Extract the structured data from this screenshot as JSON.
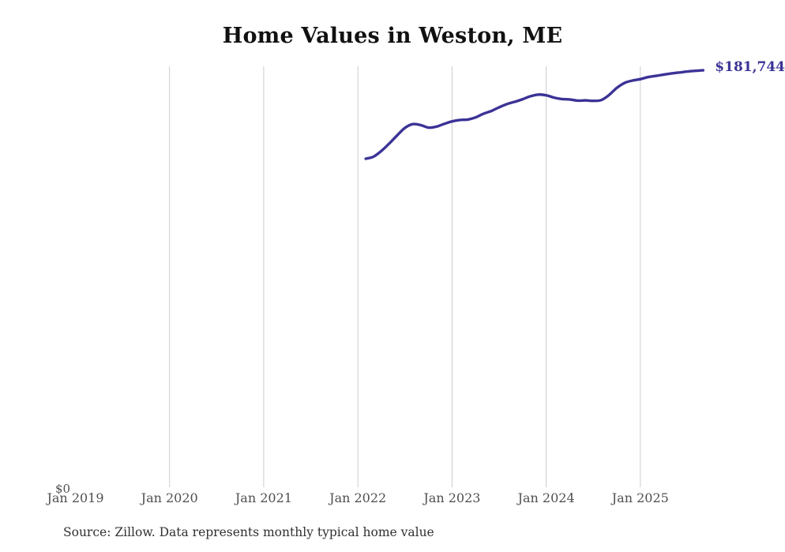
{
  "title": "Home Values in Weston, ME",
  "latest_value_label": "$181,744",
  "source_note": "Source: Zillow. Data represents monthly typical home value",
  "y_axis": {
    "zero_label": "$0"
  },
  "x_axis": {
    "tick_labels": [
      "Jan 2019",
      "Jan 2020",
      "Jan 2021",
      "Jan 2022",
      "Jan 2023",
      "Jan 2024",
      "Jan 2025"
    ],
    "gridlines": [
      "Jan 2020",
      "Jan 2021",
      "Jan 2022",
      "Jan 2023",
      "Jan 2024",
      "Jan 2025"
    ]
  },
  "colors": {
    "line": "#3b3396",
    "value_label": "#3b3396",
    "grid": "#cccccc",
    "axis_label": "#4f4f4f",
    "title": "#111111",
    "source": "#303030",
    "background": "#ffffff"
  },
  "chart_data": {
    "type": "line",
    "title": "Home Values in Weston, ME",
    "series_name": "Monthly typical home value (USD)",
    "x": [
      "2022-02",
      "2022-03",
      "2022-04",
      "2022-05",
      "2022-06",
      "2022-07",
      "2022-08",
      "2022-09",
      "2022-10",
      "2022-11",
      "2022-12",
      "2023-01",
      "2023-02",
      "2023-03",
      "2023-04",
      "2023-05",
      "2023-06",
      "2023-07",
      "2023-08",
      "2023-09",
      "2023-10",
      "2023-11",
      "2023-12",
      "2024-01",
      "2024-02",
      "2024-03",
      "2024-04",
      "2024-05",
      "2024-06",
      "2024-07",
      "2024-08",
      "2024-09",
      "2024-10",
      "2024-11",
      "2024-12",
      "2025-01",
      "2025-02",
      "2025-03",
      "2025-04",
      "2025-05",
      "2025-06",
      "2025-07",
      "2025-08",
      "2025-09"
    ],
    "values": [
      143400,
      144300,
      146800,
      150000,
      153500,
      156800,
      158400,
      158000,
      156900,
      157300,
      158500,
      159600,
      160200,
      160400,
      161300,
      162900,
      164100,
      165700,
      167100,
      168100,
      169200,
      170500,
      171200,
      170900,
      169900,
      169300,
      169100,
      168600,
      168700,
      168500,
      168800,
      171000,
      174100,
      176300,
      177300,
      177900,
      178800,
      179300,
      179900,
      180400,
      180800,
      181200,
      181500,
      181744
    ],
    "last_value": 181744,
    "end_annotation": "$181,744",
    "xlabel": "",
    "ylabel": "",
    "xlim": [
      "2019-01",
      "2025-12"
    ],
    "ylim": [
      0,
      183000
    ],
    "y_tick_labels": [
      "$0"
    ],
    "x_tick_labels": [
      "Jan 2019",
      "Jan 2020",
      "Jan 2021",
      "Jan 2022",
      "Jan 2023",
      "Jan 2024",
      "Jan 2025"
    ],
    "grid": "vertical-only",
    "legend": "none"
  }
}
